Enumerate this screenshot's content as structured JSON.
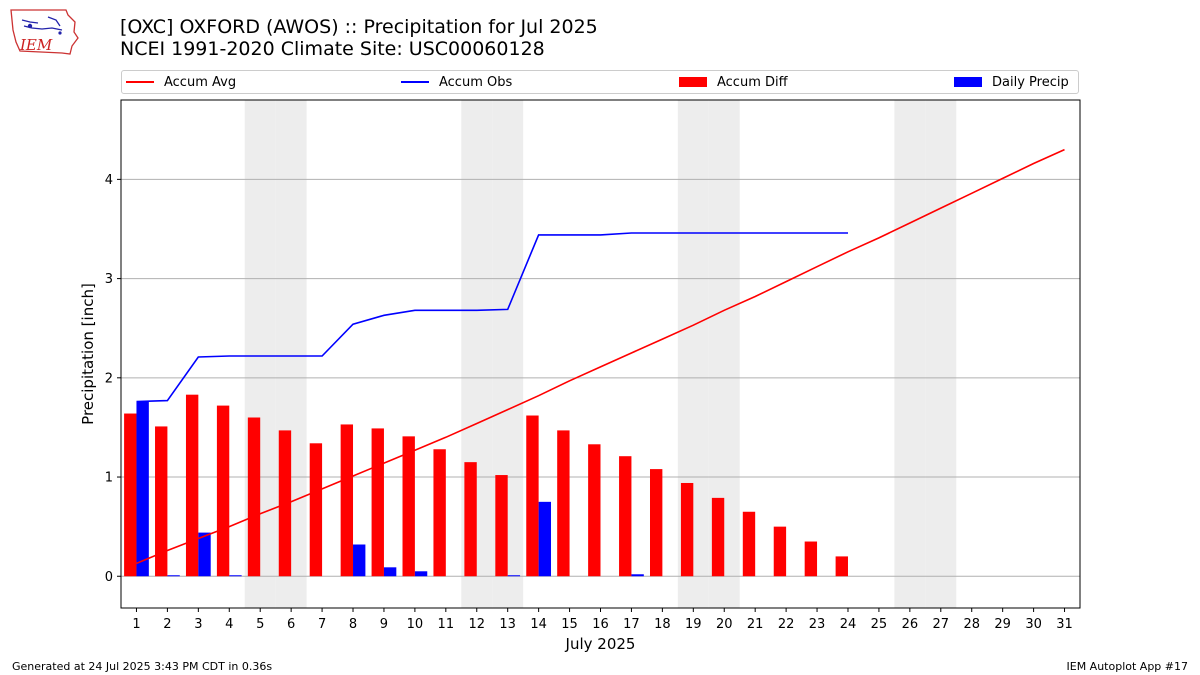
{
  "header": {
    "title_line1": "[OXC] OXFORD (AWOS) :: Precipitation for Jul 2025",
    "title_line2": "NCEI 1991-2020 Climate Site: USC00060128",
    "logo_text": "IEM"
  },
  "legend": {
    "accum_avg": "Accum Avg",
    "accum_obs": "Accum Obs",
    "accum_diff": "Accum Diff",
    "daily_precip": "Daily Precip"
  },
  "footer": {
    "generated": "Generated at 24 Jul 2025 3:43 PM CDT in 0.36s",
    "app": "IEM Autoplot App #17"
  },
  "colors": {
    "accum_avg": "#ff0000",
    "accum_obs": "#0000ff",
    "accum_diff": "#ff0000",
    "daily_precip": "#0000ff",
    "weekend_shade": "#ededed",
    "grid": "#b0b0b0"
  },
  "chart_data": {
    "type": "bar",
    "xlabel": "July 2025",
    "ylabel": "Precipitation [inch]",
    "xlim": [
      0.5,
      31.5
    ],
    "ylim": [
      -0.32,
      4.8
    ],
    "yticks": [
      0,
      1,
      2,
      3,
      4
    ],
    "grid": "y",
    "legend_position": "top",
    "days": [
      1,
      2,
      3,
      4,
      5,
      6,
      7,
      8,
      9,
      10,
      11,
      12,
      13,
      14,
      15,
      16,
      17,
      18,
      19,
      20,
      21,
      22,
      23,
      24,
      25,
      26,
      27,
      28,
      29,
      30,
      31
    ],
    "weekend_days": [
      5,
      6,
      12,
      13,
      19,
      20,
      26,
      27
    ],
    "series": [
      {
        "name": "Accum Avg",
        "kind": "line",
        "x": [
          1,
          2,
          3,
          4,
          5,
          6,
          7,
          8,
          9,
          10,
          11,
          12,
          13,
          14,
          15,
          16,
          17,
          18,
          19,
          20,
          21,
          22,
          23,
          24,
          25,
          26,
          27,
          28,
          29,
          30,
          31
        ],
        "values": [
          0.13,
          0.26,
          0.38,
          0.5,
          0.63,
          0.75,
          0.88,
          1.01,
          1.14,
          1.27,
          1.4,
          1.54,
          1.68,
          1.82,
          1.97,
          2.11,
          2.25,
          2.39,
          2.53,
          2.68,
          2.82,
          2.97,
          3.12,
          3.27,
          3.41,
          3.56,
          3.71,
          3.86,
          4.01,
          4.16,
          4.3
        ]
      },
      {
        "name": "Accum Obs",
        "kind": "line",
        "x": [
          1,
          2,
          3,
          4,
          5,
          6,
          7,
          8,
          9,
          10,
          11,
          12,
          13,
          14,
          15,
          16,
          17,
          18,
          19,
          20,
          21,
          22,
          23,
          24
        ],
        "values": [
          1.76,
          1.77,
          2.21,
          2.22,
          2.22,
          2.22,
          2.22,
          2.54,
          2.63,
          2.68,
          2.68,
          2.68,
          2.69,
          3.44,
          3.44,
          3.44,
          3.46,
          3.46,
          3.46,
          3.46,
          3.46,
          3.46,
          3.46,
          3.46
        ]
      },
      {
        "name": "Accum Diff",
        "kind": "bar",
        "x": [
          1,
          2,
          3,
          4,
          5,
          6,
          7,
          8,
          9,
          10,
          11,
          12,
          13,
          14,
          15,
          16,
          17,
          18,
          19,
          20,
          21,
          22,
          23,
          24
        ],
        "values": [
          1.64,
          1.51,
          1.83,
          1.72,
          1.6,
          1.47,
          1.34,
          1.53,
          1.49,
          1.41,
          1.28,
          1.15,
          1.02,
          1.62,
          1.47,
          1.33,
          1.21,
          1.08,
          0.94,
          0.79,
          0.65,
          0.5,
          0.35,
          0.2
        ]
      },
      {
        "name": "Daily Precip",
        "kind": "bar",
        "x": [
          1,
          2,
          3,
          4,
          5,
          6,
          7,
          8,
          9,
          10,
          11,
          12,
          13,
          14,
          15,
          16,
          17,
          18,
          19,
          20,
          21,
          22,
          23,
          24
        ],
        "values": [
          1.76,
          0.01,
          0.44,
          0.01,
          0,
          0,
          0,
          0.32,
          0.09,
          0.05,
          0,
          0,
          0.01,
          0.75,
          0,
          0,
          0.02,
          0,
          0,
          0,
          0,
          0,
          0,
          0
        ]
      }
    ]
  }
}
